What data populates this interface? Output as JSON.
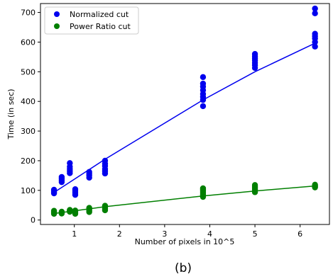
{
  "chart_data": {
    "type": "scatter",
    "title": "",
    "caption": "(b)",
    "xlabel": "Number of pixels in 10^5",
    "ylabel": "Time  (in sec)",
    "xlim": [
      0.25,
      6.65
    ],
    "ylim": [
      -15,
      730
    ],
    "xticks": [
      1,
      2,
      3,
      4,
      5,
      6
    ],
    "yticks": [
      0,
      100,
      200,
      300,
      400,
      500,
      600,
      700
    ],
    "grid": false,
    "legend_position": "upper-left",
    "series": [
      {
        "name": "Normalized cut",
        "color": "#0000ee",
        "points": [
          [
            0.55,
            90
          ],
          [
            0.55,
            94
          ],
          [
            0.55,
            98
          ],
          [
            0.55,
            102
          ],
          [
            0.72,
            128
          ],
          [
            0.72,
            134
          ],
          [
            0.72,
            140
          ],
          [
            0.72,
            145
          ],
          [
            0.9,
            158
          ],
          [
            0.9,
            165
          ],
          [
            0.9,
            172
          ],
          [
            0.9,
            180
          ],
          [
            0.9,
            192
          ],
          [
            1.02,
            85
          ],
          [
            1.02,
            92
          ],
          [
            1.02,
            98
          ],
          [
            1.02,
            104
          ],
          [
            1.33,
            143
          ],
          [
            1.33,
            150
          ],
          [
            1.33,
            156
          ],
          [
            1.33,
            162
          ],
          [
            1.68,
            157
          ],
          [
            1.68,
            165
          ],
          [
            1.68,
            172
          ],
          [
            1.68,
            182
          ],
          [
            1.68,
            190
          ],
          [
            1.68,
            200
          ],
          [
            3.85,
            384
          ],
          [
            3.85,
            405
          ],
          [
            3.85,
            415
          ],
          [
            3.85,
            425
          ],
          [
            3.85,
            438
          ],
          [
            3.85,
            450
          ],
          [
            3.85,
            460
          ],
          [
            3.85,
            482
          ],
          [
            5.0,
            513
          ],
          [
            5.0,
            522
          ],
          [
            5.0,
            530
          ],
          [
            5.0,
            538
          ],
          [
            5.0,
            545
          ],
          [
            5.0,
            552
          ],
          [
            5.0,
            560
          ],
          [
            6.33,
            585
          ],
          [
            6.33,
            600
          ],
          [
            6.33,
            612
          ],
          [
            6.33,
            620
          ],
          [
            6.33,
            628
          ],
          [
            6.33,
            697
          ],
          [
            6.33,
            713
          ]
        ],
        "fit_line": [
          [
            0.55,
            93
          ],
          [
            1.68,
            205
          ],
          [
            3.85,
            405
          ],
          [
            5.0,
            500
          ],
          [
            6.33,
            596
          ]
        ]
      },
      {
        "name": "Power Ratio cut",
        "color": "#007f00",
        "points": [
          [
            0.55,
            21
          ],
          [
            0.55,
            25
          ],
          [
            0.55,
            28
          ],
          [
            0.55,
            31
          ],
          [
            0.72,
            22
          ],
          [
            0.72,
            25
          ],
          [
            0.72,
            28
          ],
          [
            0.9,
            28
          ],
          [
            0.9,
            31
          ],
          [
            0.9,
            34
          ],
          [
            1.02,
            21
          ],
          [
            1.02,
            25
          ],
          [
            1.02,
            29
          ],
          [
            1.02,
            32
          ],
          [
            1.33,
            27
          ],
          [
            1.33,
            32
          ],
          [
            1.33,
            36
          ],
          [
            1.33,
            41
          ],
          [
            1.68,
            33
          ],
          [
            1.68,
            38
          ],
          [
            1.68,
            43
          ],
          [
            1.68,
            48
          ],
          [
            3.85,
            78
          ],
          [
            3.85,
            83
          ],
          [
            3.85,
            88
          ],
          [
            3.85,
            93
          ],
          [
            3.85,
            98
          ],
          [
            3.85,
            103
          ],
          [
            3.85,
            107
          ],
          [
            5.0,
            94
          ],
          [
            5.0,
            98
          ],
          [
            5.0,
            103
          ],
          [
            5.0,
            108
          ],
          [
            5.0,
            113
          ],
          [
            5.0,
            118
          ],
          [
            6.33,
            110
          ],
          [
            6.33,
            113
          ],
          [
            6.33,
            116
          ],
          [
            6.33,
            119
          ]
        ],
        "fit_line": [
          [
            0.55,
            22
          ],
          [
            1.0,
            31
          ],
          [
            1.68,
            45
          ],
          [
            3.85,
            81
          ],
          [
            5.0,
            98
          ],
          [
            6.33,
            115
          ]
        ]
      }
    ]
  }
}
